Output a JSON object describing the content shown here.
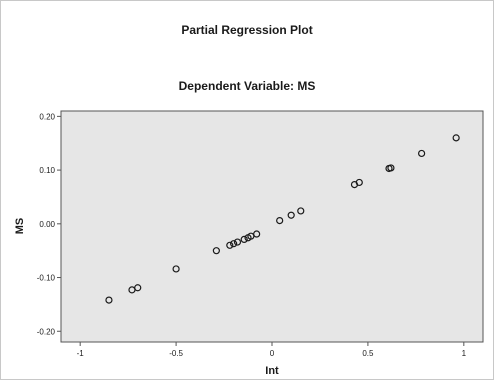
{
  "chart_data": {
    "type": "scatter",
    "title": "Partial Regression Plot",
    "subtitle": "Dependent Variable: MS",
    "xlabel": "Int",
    "ylabel": "MS",
    "xlim": [
      -1.1,
      1.1
    ],
    "ylim": [
      -0.22,
      0.21
    ],
    "x_ticks": [
      -1,
      -0.5,
      0,
      0.5,
      1
    ],
    "x_tick_labels": [
      "-1",
      "-0.5",
      "0",
      "0.5",
      "1"
    ],
    "y_ticks": [
      0.2,
      0.1,
      0.0,
      -0.1,
      -0.2
    ],
    "y_tick_labels": [
      "0.20",
      "0.10",
      "0.00",
      "-0.10",
      "-0.20"
    ],
    "grid": false,
    "colors": {
      "plot_background": "#e6e6e6",
      "marker_stroke": "#1a1a1a",
      "text": "#1a1a1a"
    },
    "points": [
      {
        "x": -0.85,
        "y": -0.142
      },
      {
        "x": -0.73,
        "y": -0.123
      },
      {
        "x": -0.7,
        "y": -0.119
      },
      {
        "x": -0.5,
        "y": -0.084
      },
      {
        "x": -0.29,
        "y": -0.05
      },
      {
        "x": -0.22,
        "y": -0.04
      },
      {
        "x": -0.2,
        "y": -0.037
      },
      {
        "x": -0.18,
        "y": -0.034
      },
      {
        "x": -0.145,
        "y": -0.029
      },
      {
        "x": -0.125,
        "y": -0.026
      },
      {
        "x": -0.11,
        "y": -0.023
      },
      {
        "x": -0.08,
        "y": -0.019
      },
      {
        "x": 0.04,
        "y": 0.006
      },
      {
        "x": 0.1,
        "y": 0.016
      },
      {
        "x": 0.15,
        "y": 0.024
      },
      {
        "x": 0.43,
        "y": 0.073
      },
      {
        "x": 0.455,
        "y": 0.077
      },
      {
        "x": 0.61,
        "y": 0.103
      },
      {
        "x": 0.62,
        "y": 0.104
      },
      {
        "x": 0.78,
        "y": 0.131
      },
      {
        "x": 0.96,
        "y": 0.16
      }
    ]
  }
}
